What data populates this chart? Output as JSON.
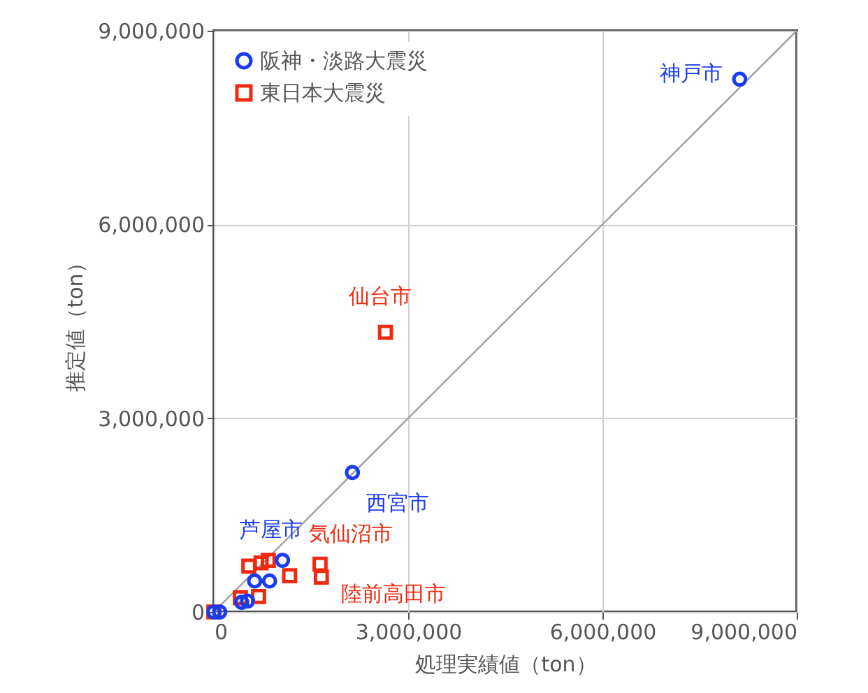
{
  "chart_data": {
    "type": "scatter",
    "xlabel": "処理実績値（ton）",
    "ylabel": "推定値（ton）",
    "xlim": [
      0,
      9000000
    ],
    "ylim": [
      0,
      9000000
    ],
    "xticks": [
      {
        "value": 0,
        "label": "0"
      },
      {
        "value": 3000000,
        "label": "3,000,000"
      },
      {
        "value": 6000000,
        "label": "6,000,000"
      },
      {
        "value": 9000000,
        "label": "9,000,000"
      }
    ],
    "yticks": [
      {
        "value": 0,
        "label": "0"
      },
      {
        "value": 3000000,
        "label": "3,000,000"
      },
      {
        "value": 6000000,
        "label": "6,000,000"
      },
      {
        "value": 9000000,
        "label": "9,000,000"
      }
    ],
    "grid": true,
    "legend": "top left",
    "series": [
      {
        "name": "阪神・淡路大震災",
        "color": "#1a3cf0",
        "marker": "circle",
        "x": [
          8120000,
          2140000,
          1060000,
          630000,
          860000,
          430000,
          520000,
          0,
          90000
        ],
        "values": [
          8250000,
          2160000,
          800000,
          480000,
          480000,
          150000,
          170000,
          0,
          0
        ]
      },
      {
        "name": "東日本大震災",
        "color": "#f02a10",
        "marker": "square",
        "x": [
          2650000,
          1640000,
          1660000,
          540000,
          730000,
          840000,
          1170000,
          690000,
          410000,
          0
        ],
        "values": [
          4330000,
          740000,
          540000,
          710000,
          760000,
          800000,
          560000,
          240000,
          220000,
          0
        ]
      },
      {
        "type": "line",
        "color": "#a0a0a0",
        "marker": "none",
        "x": [
          0,
          9000000
        ],
        "values": [
          0,
          9000000
        ]
      }
    ],
    "annotations": [
      {
        "text": "神戸市",
        "x": 8120000,
        "y": 8250000
      },
      {
        "text": "仙台市",
        "x": 2650000,
        "y": 4330000
      },
      {
        "text": "西宮市",
        "x": 2140000,
        "y": 2160000
      },
      {
        "text": "芦屋市",
        "x": 1060000,
        "y": 800000
      },
      {
        "text": "気仙沼市",
        "x": 1640000,
        "y": 740000
      },
      {
        "text": "陸前高田市",
        "x": 1660000,
        "y": 540000
      }
    ]
  }
}
